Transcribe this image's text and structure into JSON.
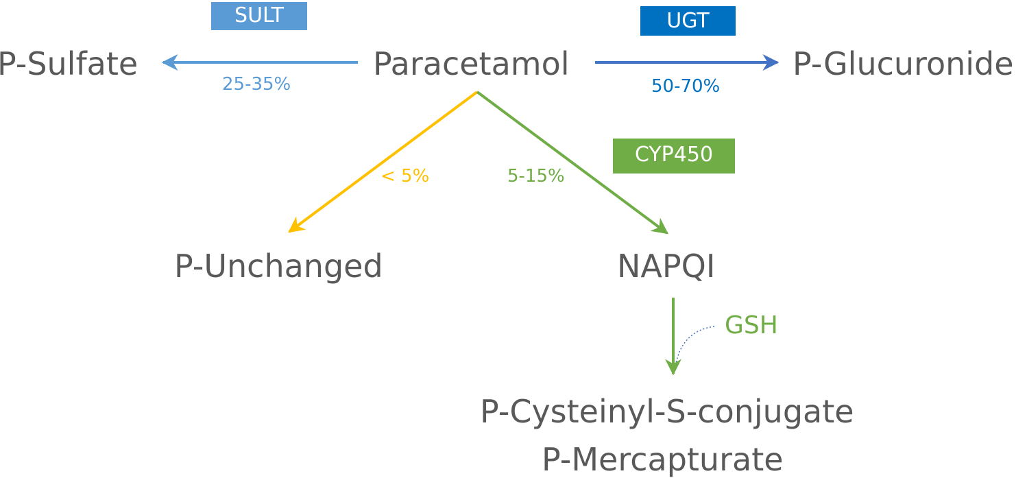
{
  "nodes": {
    "paracetamol": "Paracetamol",
    "sulfate": "P-Sulfate",
    "glucuronide": "P-Glucuronide",
    "unchanged": "P-Unchanged",
    "napqi": "NAPQI",
    "cysteinyl": "P-Cysteinyl-S-conjugate",
    "mercapturate": "P-Mercapturate"
  },
  "enzymes": {
    "sult": "SULT",
    "ugt": "UGT",
    "cyp450": "CYP450"
  },
  "percentages": {
    "sulfation": "25-35%",
    "glucuronidation": "50-70%",
    "unchanged": "< 5%",
    "oxidation": "5-15%"
  },
  "cofactor": "GSH",
  "colors": {
    "text": "#595959",
    "sult": "#5B9BD5",
    "ugt": "#0070C0",
    "ugt_arrow": "#4472C4",
    "unchanged": "#FFC000",
    "cyp": "#70AD47"
  }
}
